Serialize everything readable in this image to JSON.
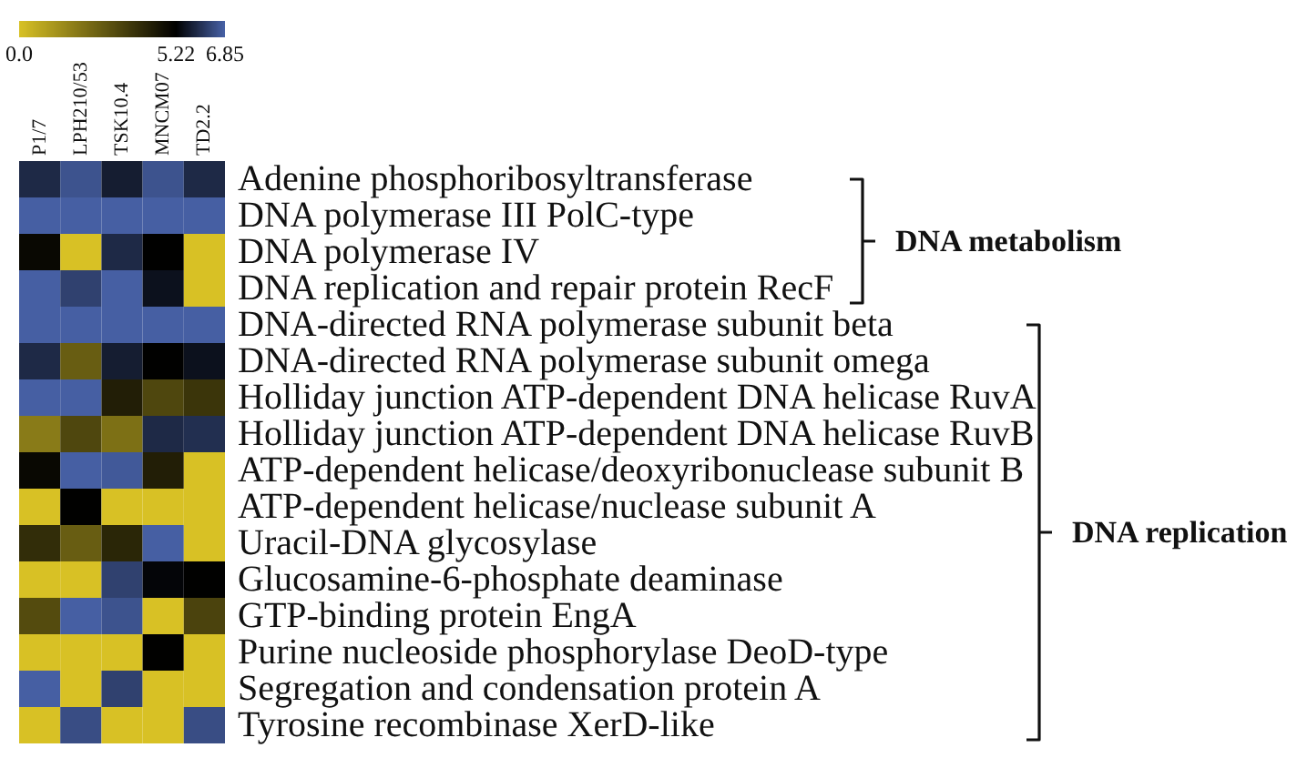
{
  "chart_data": {
    "type": "heatmap",
    "categories": [
      "P1/7",
      "LPH210/53",
      "TSK10.4",
      "MNCM07",
      "TD2.2"
    ],
    "y_categories": [
      "Adenine phosphoribosyltransferase",
      "DNA polymerase III PolC-type",
      "DNA polymerase IV",
      "DNA replication and repair protein RecF",
      "DNA-directed RNA polymerase subunit beta",
      "DNA-directed RNA polymerase subunit omega",
      "Holliday junction ATP-dependent DNA helicase RuvA",
      "Holliday junction ATP-dependent DNA helicase RuvB",
      "ATP-dependent helicase/deoxyribonuclease subunit B",
      "ATP-dependent helicase/nuclease subunit A",
      "Uracil-DNA glycosylase",
      "Glucosamine-6-phosphate deaminase",
      "GTP-binding protein EngA",
      "Purine nucleoside phosphorylase DeoD-type",
      "Segregation and condensation protein A",
      "Tyrosine recombinase XerD-like"
    ],
    "cells": [
      [
        5.9,
        6.6,
        5.7,
        6.6,
        5.9
      ],
      [
        6.8,
        6.8,
        6.8,
        6.8,
        6.8
      ],
      [
        5.0,
        0,
        5.9,
        5.2,
        0
      ],
      [
        6.8,
        6.3,
        6.8,
        5.5,
        0
      ],
      [
        6.8,
        6.8,
        6.8,
        6.8,
        6.8
      ],
      [
        5.9,
        2.7,
        5.7,
        5.2,
        5.5
      ],
      [
        6.8,
        6.8,
        4.4,
        3.3,
        3.8
      ],
      [
        1.9,
        3.3,
        2.2,
        5.9,
        6.0
      ],
      [
        5.0,
        6.8,
        6.7,
        4.4,
        0
      ],
      [
        0,
        5.2,
        0,
        0,
        0
      ],
      [
        4.0,
        2.7,
        4.2,
        6.8,
        0
      ],
      [
        0,
        0,
        6.3,
        5.3,
        5.2
      ],
      [
        3.2,
        6.8,
        6.6,
        0,
        3.4
      ],
      [
        0,
        0,
        0,
        5.2,
        0
      ],
      [
        6.8,
        0,
        6.3,
        0,
        0
      ],
      [
        0,
        6.5,
        0,
        0,
        6.5
      ]
    ],
    "clim": [
      0,
      6.85
    ],
    "cticks": [
      {
        "value": 0,
        "label": "0.0"
      },
      5.22,
      6.85
    ],
    "colors": [
      "#d8c125",
      "#000000",
      "#4862a8"
    ],
    "annotations": [
      "DNA metabolism",
      "DNA replication"
    ]
  }
}
